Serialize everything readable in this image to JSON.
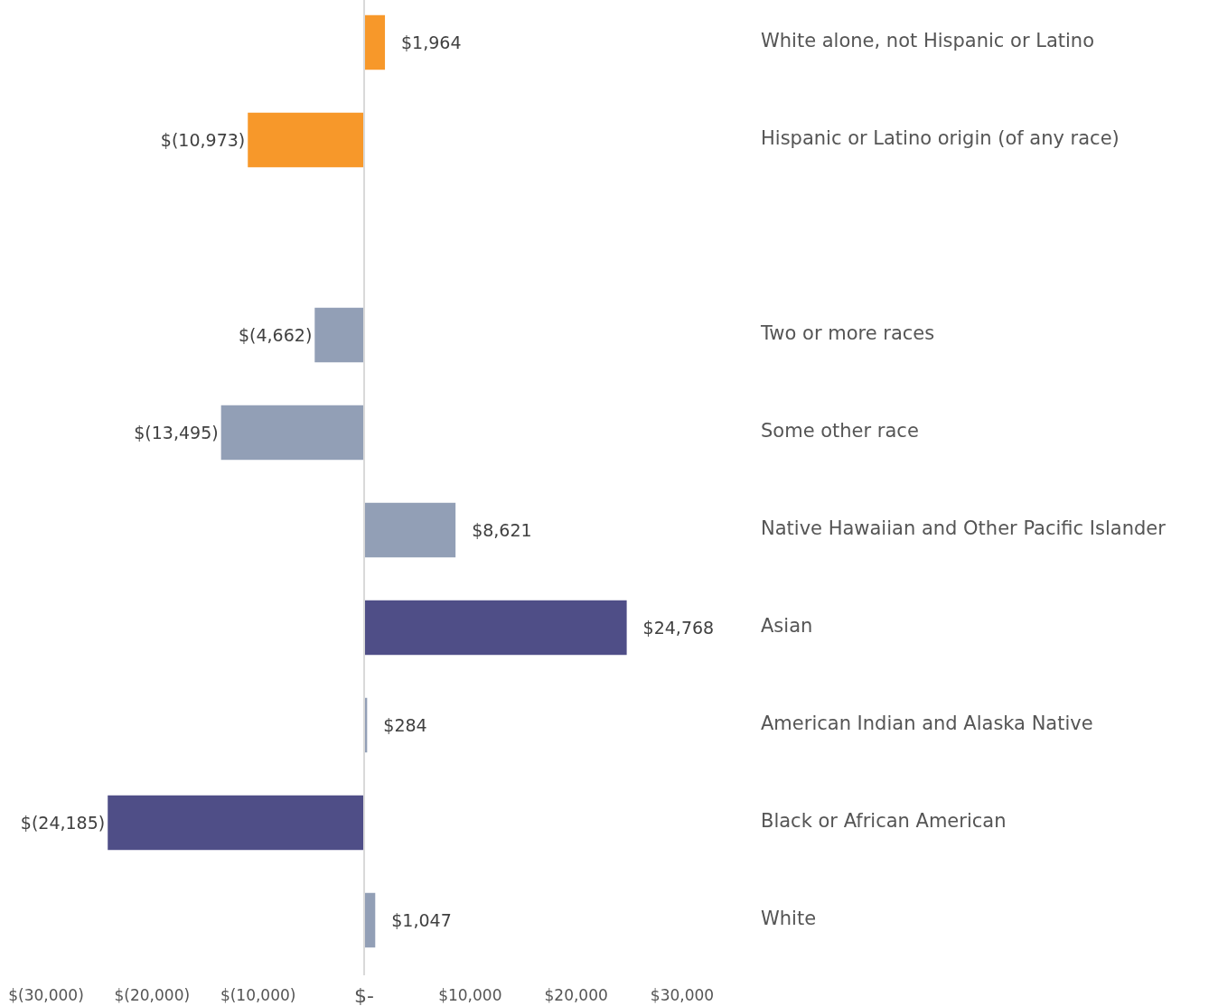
{
  "chart_data": {
    "type": "bar",
    "orientation": "horizontal",
    "categories": [
      "White alone, not Hispanic or Latino",
      "Hispanic or Latino origin (of any race)",
      null,
      "Two or more races",
      "Some other race",
      "Native Hawaiian and Other Pacific Islander",
      "Asian",
      "American Indian and Alaska Native",
      "Black or African American",
      "White"
    ],
    "values": [
      1964,
      -10973,
      null,
      -4662,
      -13495,
      8621,
      24768,
      284,
      -24185,
      1047
    ],
    "colors": [
      "#f7982a",
      "#f7982a",
      null,
      "#929fb6",
      "#929fb6",
      "#929fb6",
      "#4f4e87",
      "#929fb6",
      "#4f4e87",
      "#929fb6"
    ],
    "value_labels": [
      "$1,964",
      "$(10,973)",
      null,
      "$(4,662)",
      "$(13,495)",
      "$8,621",
      "$24,768",
      "$284",
      "$(24,185)",
      "$1,047"
    ],
    "xlim": [
      -30000,
      30000
    ],
    "xticks": [
      {
        "value": -30000,
        "label": "$(30,000)"
      },
      {
        "value": -20000,
        "label": "$(20,000)"
      },
      {
        "value": -10000,
        "label": "$(10,000)"
      },
      {
        "value": 0,
        "label": "$-"
      },
      {
        "value": 10000,
        "label": "$10,000"
      },
      {
        "value": 20000,
        "label": "$20,000"
      },
      {
        "value": 30000,
        "label": "$30,000"
      }
    ],
    "ref_lines": [
      {
        "axis": "x",
        "value": 0,
        "color": "#d9d9d9"
      }
    ]
  }
}
